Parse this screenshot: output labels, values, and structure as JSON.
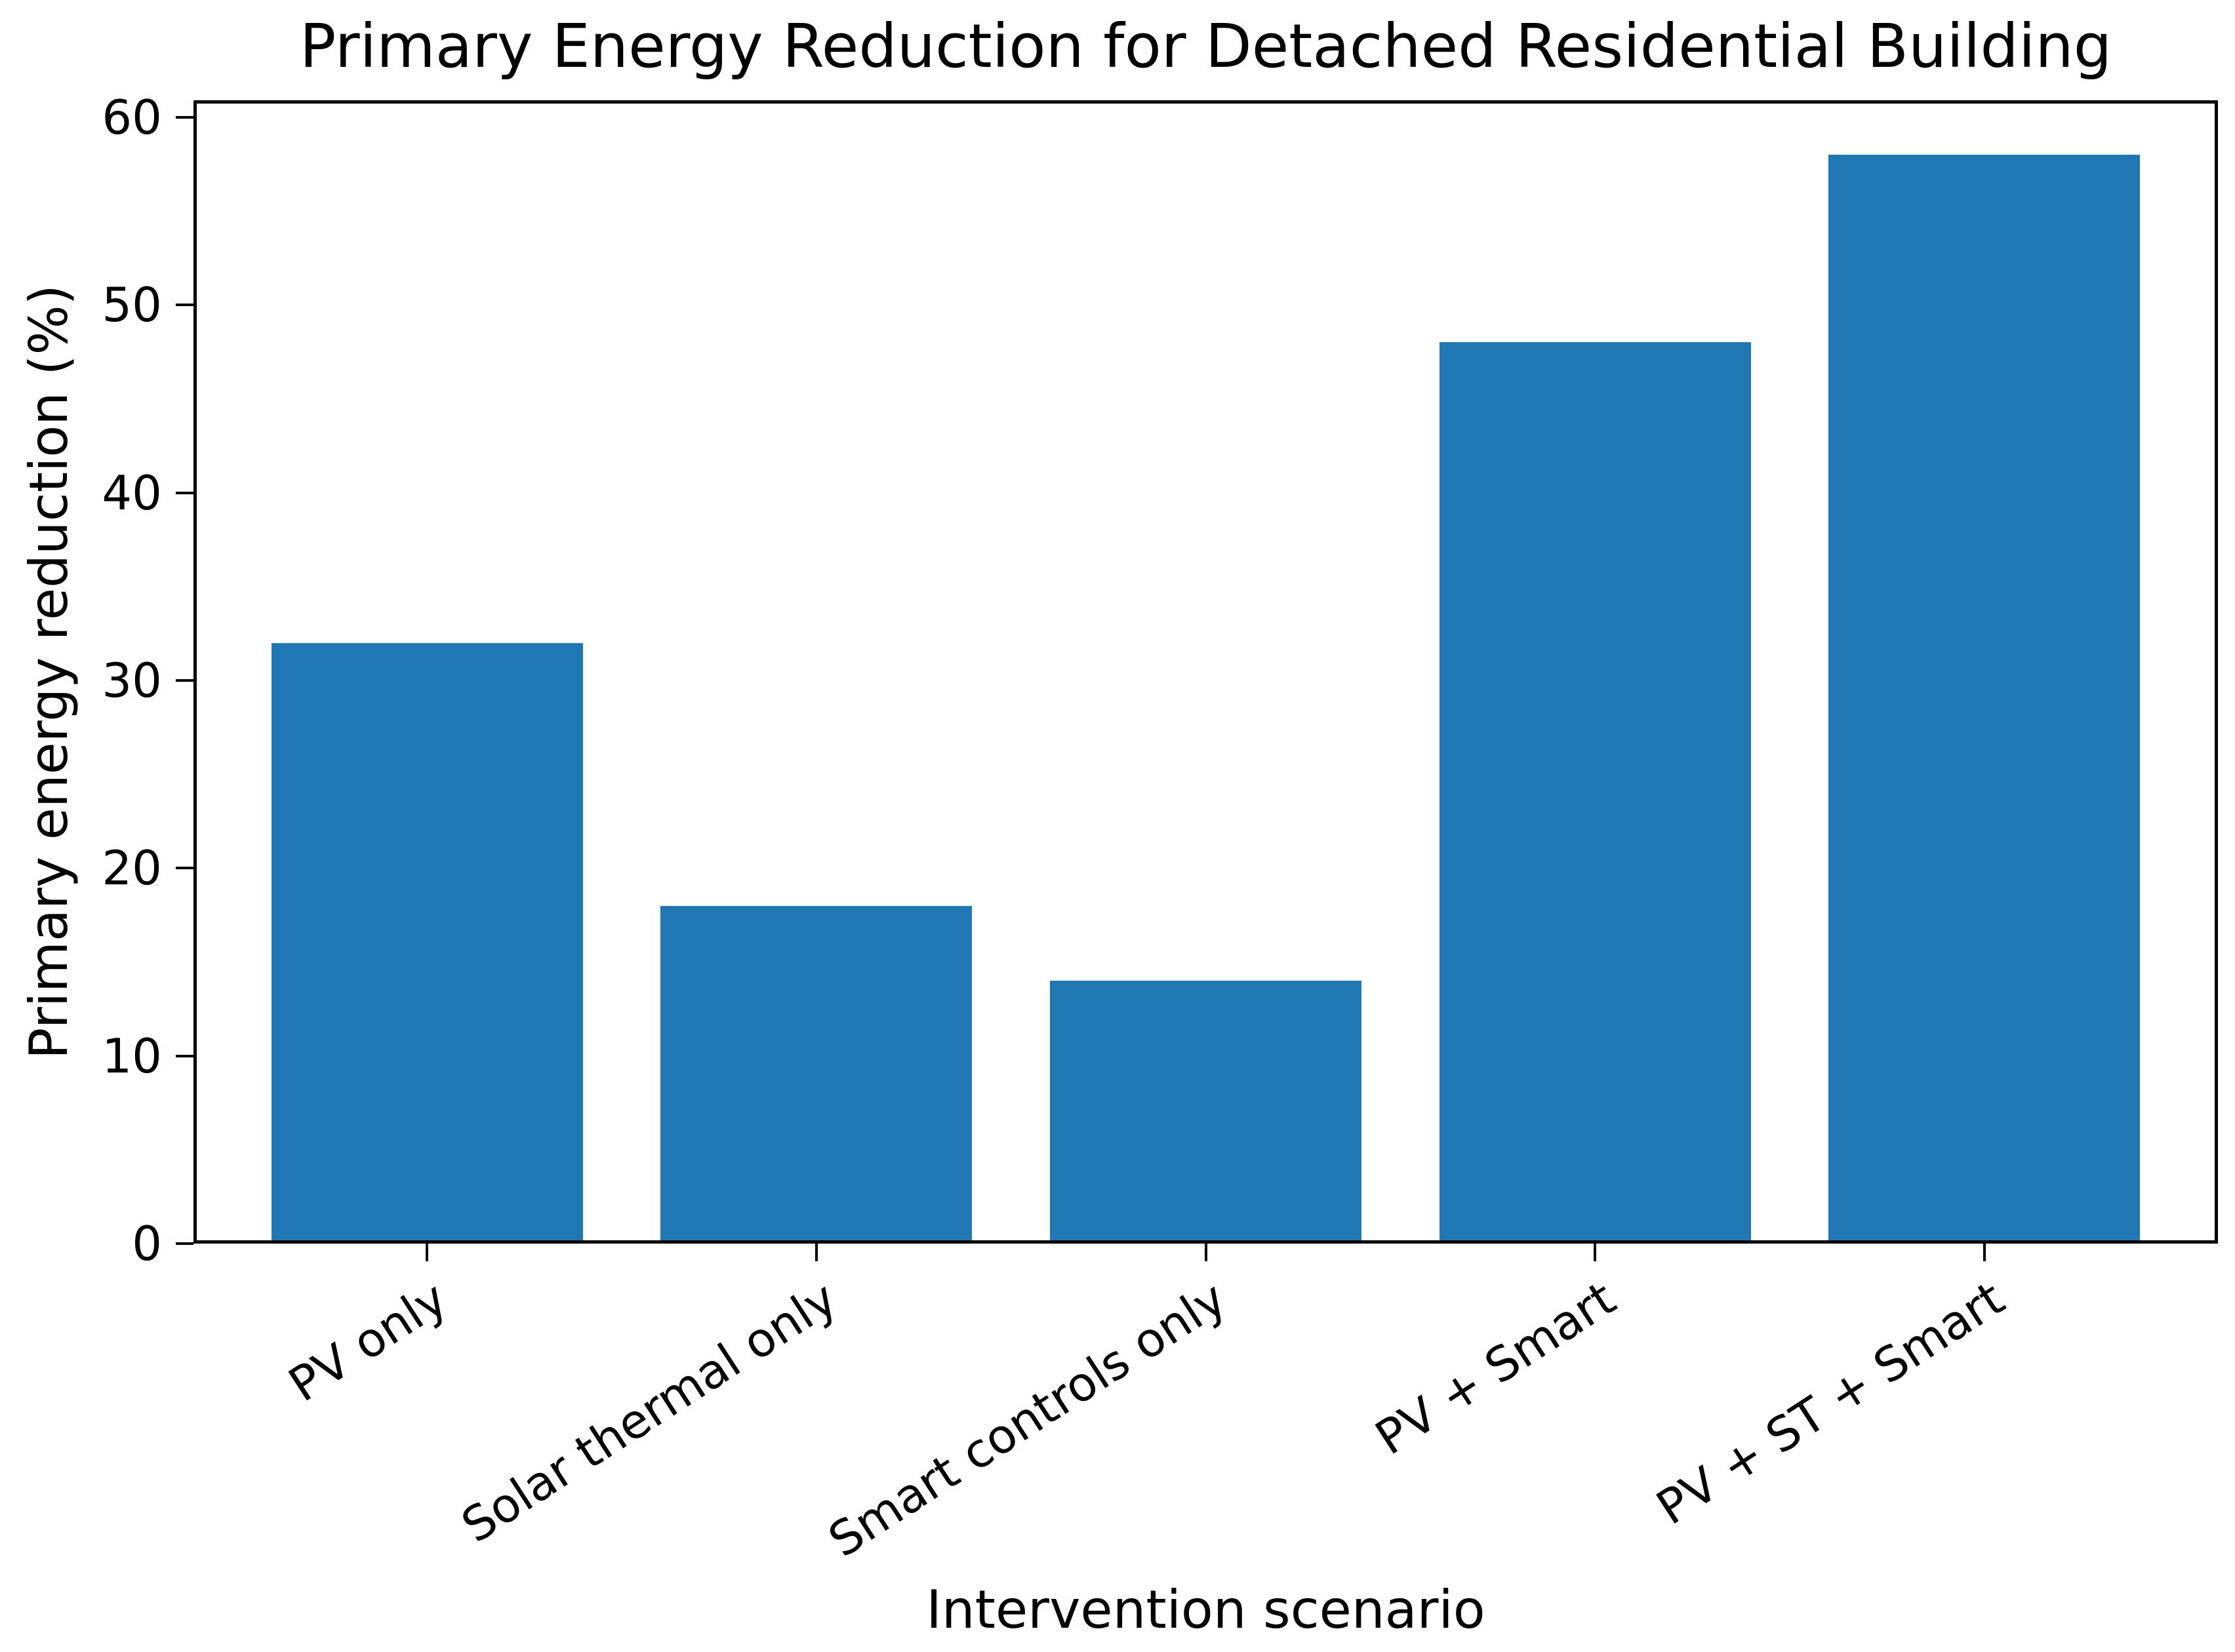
{
  "figure": {
    "background": "#ffffff",
    "text_color": "#000000"
  },
  "chart_data": {
    "type": "bar",
    "title": "Primary Energy Reduction for Detached Residential Building",
    "xlabel": "Intervention scenario",
    "ylabel": "Primary energy reduction (%)",
    "categories": [
      "PV only",
      "Solar thermal only",
      "Smart controls only",
      "PV + Smart",
      "PV + ST + Smart"
    ],
    "values": [
      32,
      18,
      14,
      48,
      58
    ],
    "bar_color": "#1f77b4",
    "ylim": [
      0,
      60.9
    ],
    "yticks": [
      0,
      10,
      20,
      30,
      40,
      50,
      60
    ],
    "grid": false,
    "legend": null,
    "xtick_rotation_deg": 33,
    "bar_width_fraction": 0.8
  }
}
